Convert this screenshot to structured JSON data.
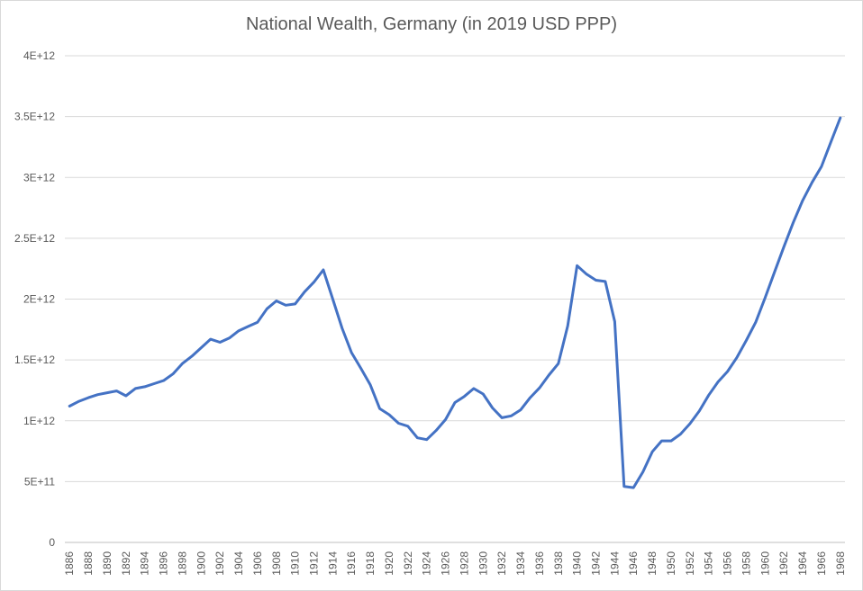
{
  "chart_data": {
    "type": "line",
    "title": "National Wealth, Germany (in 2019 USD PPP)",
    "xlabel": "",
    "ylabel": "",
    "ylim": [
      0,
      4000000000000
    ],
    "yticks": [
      {
        "value": 0,
        "label": "0"
      },
      {
        "value": 500000000000,
        "label": "5E+11"
      },
      {
        "value": 1000000000000,
        "label": "1E+12"
      },
      {
        "value": 1500000000000,
        "label": "1.5E+12"
      },
      {
        "value": 2000000000000,
        "label": "2E+12"
      },
      {
        "value": 2500000000000,
        "label": "2.5E+12"
      },
      {
        "value": 3000000000000,
        "label": "3E+12"
      },
      {
        "value": 3500000000000,
        "label": "3.5E+12"
      },
      {
        "value": 4000000000000,
        "label": "4E+12"
      }
    ],
    "xticks": [
      "1886",
      "1888",
      "1890",
      "1892",
      "1894",
      "1896",
      "1898",
      "1900",
      "1902",
      "1904",
      "1906",
      "1908",
      "1910",
      "1912",
      "1914",
      "1916",
      "1918",
      "1920",
      "1922",
      "1924",
      "1926",
      "1928",
      "1930",
      "1932",
      "1934",
      "1936",
      "1938",
      "1940",
      "1942",
      "1944",
      "1946",
      "1948",
      "1950",
      "1952",
      "1954",
      "1956",
      "1958",
      "1960",
      "1962",
      "1964",
      "1966",
      "1968"
    ],
    "grid": true,
    "legend": "none",
    "series": [
      {
        "color": "#4472c4",
        "x": [
          1886,
          1887,
          1888,
          1889,
          1890,
          1891,
          1892,
          1893,
          1894,
          1895,
          1896,
          1897,
          1898,
          1899,
          1900,
          1901,
          1902,
          1903,
          1904,
          1905,
          1906,
          1907,
          1908,
          1909,
          1910,
          1911,
          1912,
          1913,
          1914,
          1915,
          1916,
          1917,
          1918,
          1919,
          1920,
          1921,
          1922,
          1923,
          1924,
          1925,
          1926,
          1927,
          1928,
          1929,
          1930,
          1931,
          1932,
          1933,
          1934,
          1935,
          1936,
          1937,
          1938,
          1939,
          1940,
          1941,
          1942,
          1943,
          1944,
          1945,
          1946,
          1947,
          1948,
          1949,
          1950,
          1951,
          1952,
          1953,
          1954,
          1955,
          1956,
          1957,
          1958,
          1959,
          1960,
          1961,
          1962,
          1963,
          1964,
          1965,
          1966,
          1967,
          1968
        ],
        "values": [
          1120000000000,
          1160000000000,
          1190000000000,
          1215000000000,
          1230000000000,
          1245000000000,
          1205000000000,
          1265000000000,
          1280000000000,
          1305000000000,
          1330000000000,
          1385000000000,
          1470000000000,
          1530000000000,
          1600000000000,
          1670000000000,
          1645000000000,
          1680000000000,
          1740000000000,
          1775000000000,
          1810000000000,
          1920000000000,
          1985000000000,
          1950000000000,
          1960000000000,
          2060000000000,
          2140000000000,
          2240000000000,
          2000000000000,
          1760000000000,
          1560000000000,
          1430000000000,
          1295000000000,
          1100000000000,
          1050000000000,
          980000000000,
          955000000000,
          860000000000,
          845000000000,
          920000000000,
          1010000000000,
          1150000000000,
          1200000000000,
          1265000000000,
          1220000000000,
          1105000000000,
          1025000000000,
          1040000000000,
          1090000000000,
          1190000000000,
          1270000000000,
          1375000000000,
          1470000000000,
          1780000000000,
          2275000000000,
          2205000000000,
          2155000000000,
          2145000000000,
          1815000000000,
          460000000000,
          450000000000,
          580000000000,
          745000000000,
          835000000000,
          835000000000,
          890000000000,
          975000000000,
          1080000000000,
          1210000000000,
          1320000000000,
          1405000000000,
          1520000000000,
          1660000000000,
          1810000000000,
          2010000000000,
          2220000000000,
          2430000000000,
          2630000000000,
          2810000000000,
          2960000000000,
          3090000000000,
          3290000000000,
          3490000000000
        ]
      }
    ]
  }
}
